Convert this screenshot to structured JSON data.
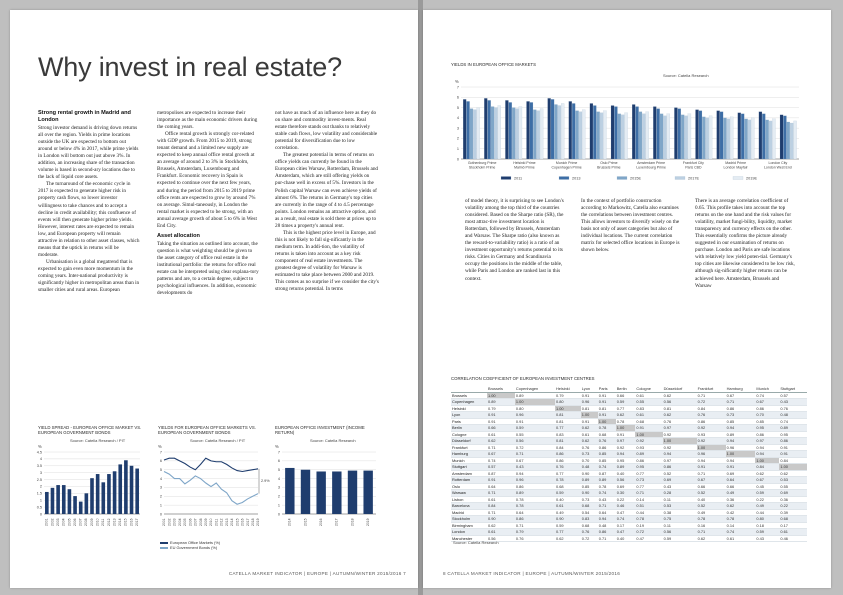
{
  "left": {
    "title": "Why invest in real estate?",
    "col1": {
      "heading": "Strong rental growth in Madrid and London",
      "paras": [
        "Strong investor demand is driving down returns all over the region. Yields in prime locations outside the UK are expected to bottom out around or below 4% in 2017, while prime yields in London will bottom out just above 3%. In addition, an increasing share of the transaction volume is based in second-ary locations due to the lack of liquid core assets.",
        "The turnaround of the economic cycle in 2017 is expected to generate higher risk in property cash flows, so lower investor willingness to take chances and to accept a decline in credit availability; this confluence of events will then generate higher prime yields. However, interest rates are expected to remain low, and European property will remain attractive in relation to other asset classes, which means that the uptick in returns will be moderate.",
        "Urbanisation is a global megatrend that is expected to gain even more momentum in the coming years. Inter-national productivity is significantly higher in metropolitan areas than in smaller cities and rural areas. European"
      ]
    },
    "col2": {
      "paras": [
        "metropolises are expected to increase their importance as the main economic drivers during the coming years.",
        "Office rental growth is strongly cor-related with GDP growth. From 2015 to 2019, strong tenant demand and a limited new supply are expected to keep annual office rental growth at an average of around 2 to 3% in Stockholm, Brussels, Amsterdam, Luxembourg and Frankfurt. Economic recovery in Spain is expected to continue over the next few years, and during the period from 2015 to 2019 prime office rents are expected to grow by around 7% on average. Simul-taneously, in London the rental market is expected to be strong, with an annual average growth of about 5 to 6% in West End City."
      ],
      "heading2": "Asset allocation",
      "paras2": [
        "Taking the situation as outlined into account, the question is what weighting should be given to the asset category of office real estate in the institutional portfolio: the returns for office real estate can be interpreted using clear explana-tory patterns and are, to a certain degree, subject to psychological influences. In addition, economic developments do"
      ]
    },
    "col3": {
      "paras": [
        "not have as much of an influence here as they do on share and commodity invest-ments. Real estate therefore stands out thanks to relatively stable cash flows, low volatility and considerable potential for diversification due to low correlation.",
        "The greatest potential in terms of returns on office yields can currently be found in the European cities Warsaw, Rotterdam, Brussels and Amsterdam, which are still offering yields on pur-chase well in excess of 5%. Investors in the Polish capital Warsaw can even achieve yields of almost 6%. The returns in Germany's top cities are currently in the range of 4 to 4.5 percentage points. London remains an attractive option, and as a result, real estate is sold there at prices up to 28 times a property's annual rent.",
        "This is the highest price level in Europe, and this is not likely to fall sig-nificantly in the medium term. In addi-tion, the volatility of returns is taken into account as a key risk component of real estate investments. The greatest degree of volatility for Warsaw is estimated to take place between 2000 and 2019. This comes as no surprise if we consider the city's strong returns potential. In terms"
      ]
    },
    "fig1": {
      "title": "YIELD SPREAD - EUROPEAN OFFICE MARKET VS. EUROPEAN GOVERNMENT BONDS",
      "source": "Source: Catella Research / PIT",
      "unit": "%"
    },
    "fig2": {
      "title": "YIELDS FOR EUROPEAN OFFICE MARKETS VS. EUROPEAN GOVERNMENT BONDS",
      "source": "Source: Catella Research / PIT",
      "unit": "%",
      "legend": [
        "European Office Markets (%)",
        "EU Government Bonds (%)"
      ]
    },
    "fig3": {
      "title": "EUROPEAN OFFICE INVESTMENT (INCOME RETURN)",
      "source": "Source: Catella Research",
      "unit": "%"
    },
    "footer": "CATELLA MARKET INDICATOR | EUROPE | AUTUMN/WINTER 2015/2016 7"
  },
  "right": {
    "fig_top": {
      "title": "YIELDS IN EUROPEAN OFFICE MARKETS",
      "source": "Source: Catella Research",
      "unit": "%"
    },
    "col1": "of model theory, it is surprising to see London's volatility among the top third of the countries considered. Based on the Sharpe ratio (SR), the most attrac-tive investment location is Rotterdam, followed by Brussels, Amsterdam and Warsaw. The Sharpe ratio (also known as the reward-to-variability ratio) is a ratio of an investment opportunity's returns potential to its risks. Cities in Germany and Scandinavia occupy the positions in the middle of the table, while Paris and London are ranked last in this context.",
    "col2": "In the context of portfolio construction according to Markowitz, Catella also examines the correlations between investment centres. This allows investors to diversify wisely on the basis not only of asset categories but also of individual locations. The current correlation matrix for selected office locations in Europe is shown below.",
    "col3": "There is an average correlation coefficient of 0.65. This profile takes into account the top returns on the one hand and the risk values for volatility, market fungi-bility, liquidity, market transparency and currency effects on the other. This essentially confirms the picture already suggested in our examination of returns on purchase. London and Paris are safe locations with relatively low yield poten-tial. Germany's top cities are likewise considered to be low risk, although sig-nificantly higher returns can be achieved here. Amsterdam, Brussels and Warsaw",
    "table_title": "CORRELATION COEFFICIENT OF EUROPEAN INVESTMENT CENTRES",
    "table_source": "Source: Catella Research",
    "footer": "8 CATELLA MARKET INDICATOR | EUROPE | AUTUMN/WINTER 2015/2016"
  },
  "table": {
    "headers": [
      "Brussels",
      "Copenhagen",
      "Helsinki",
      "Lyon",
      "Paris",
      "Berlin",
      "Cologne",
      "Düsseldorf",
      "Frankfurt",
      "Hamburg",
      "Munich",
      "Stuttgart"
    ],
    "rows": [
      {
        "name": "Brussels",
        "v": [
          "1.00",
          "0.89",
          "0.79",
          "0.91",
          "0.91",
          "0.66",
          "0.61",
          "0.62",
          "0.71",
          "0.67",
          "0.74",
          "0.57"
        ]
      },
      {
        "name": "Copenhagen",
        "v": [
          "0.89",
          "1.00",
          "0.80",
          "0.96",
          "0.91",
          "0.59",
          "0.55",
          "0.56",
          "0.72",
          "0.71",
          "0.67",
          "0.43"
        ]
      },
      {
        "name": "Helsinki",
        "v": [
          "0.79",
          "0.80",
          "1.00",
          "0.81",
          "0.81",
          "0.77",
          "0.83",
          "0.81",
          "0.84",
          "0.86",
          "0.86",
          "0.76"
        ]
      },
      {
        "name": "Lyon",
        "v": [
          "0.91",
          "0.96",
          "0.81",
          "1.00",
          "0.91",
          "0.62",
          "0.61",
          "0.62",
          "0.76",
          "0.73",
          "0.70",
          "0.48"
        ]
      },
      {
        "name": "Paris",
        "v": [
          "0.91",
          "0.91",
          "0.81",
          "0.91",
          "1.00",
          "0.78",
          "0.68",
          "0.76",
          "0.86",
          "0.85",
          "0.85",
          "0.74"
        ]
      },
      {
        "name": "Berlin",
        "v": [
          "0.66",
          "0.59",
          "0.77",
          "0.62",
          "0.78",
          "1.00",
          "0.91",
          "0.97",
          "0.92",
          "0.94",
          "0.95",
          "0.89"
        ]
      },
      {
        "name": "Cologne",
        "v": [
          "0.61",
          "0.55",
          "0.83",
          "0.61",
          "0.68",
          "0.91",
          "1.00",
          "0.92",
          "0.93",
          "0.89",
          "0.86",
          "0.95"
        ]
      },
      {
        "name": "Düsseldorf",
        "v": [
          "0.62",
          "0.56",
          "0.81",
          "0.62",
          "0.76",
          "0.97",
          "0.92",
          "1.00",
          "0.92",
          "0.94",
          "0.97",
          "0.86"
        ]
      },
      {
        "name": "Frankfurt",
        "v": [
          "0.71",
          "0.72",
          "0.84",
          "0.76",
          "0.86",
          "0.92",
          "0.93",
          "0.92",
          "1.00",
          "0.96",
          "0.94",
          "0.91"
        ]
      },
      {
        "name": "Hamburg",
        "v": [
          "0.67",
          "0.71",
          "0.86",
          "0.73",
          "0.85",
          "0.94",
          "0.89",
          "0.94",
          "0.96",
          "1.00",
          "0.94",
          "0.91"
        ]
      },
      {
        "name": "Munich",
        "v": [
          "0.74",
          "0.67",
          "0.86",
          "0.70",
          "0.85",
          "0.95",
          "0.86",
          "0.97",
          "0.94",
          "0.94",
          "1.00",
          "0.84"
        ]
      },
      {
        "name": "Stuttgart",
        "v": [
          "0.57",
          "0.43",
          "0.76",
          "0.48",
          "0.74",
          "0.89",
          "0.95",
          "0.86",
          "0.91",
          "0.91",
          "0.84",
          "1.00"
        ]
      },
      {
        "name": "Amsterdam",
        "v": [
          "0.87",
          "0.94",
          "0.77",
          "0.90",
          "0.87",
          "0.40",
          "0.77",
          "0.52",
          "0.71",
          "0.69",
          "0.62",
          "0.62"
        ]
      },
      {
        "name": "Rotterdam",
        "v": [
          "0.91",
          "0.96",
          "0.78",
          "0.89",
          "0.89",
          "0.56",
          "0.73",
          "0.69",
          "0.67",
          "0.64",
          "0.67",
          "0.53"
        ]
      },
      {
        "name": "Oslo",
        "v": [
          "0.64",
          "0.86",
          "0.68",
          "0.85",
          "0.78",
          "0.69",
          "0.77",
          "0.43",
          "0.66",
          "0.66",
          "0.45",
          "0.55"
        ]
      },
      {
        "name": "Warsaw",
        "v": [
          "0.71",
          "0.89",
          "0.59",
          "0.90",
          "0.74",
          "0.30",
          "0.71",
          "0.28",
          "0.52",
          "0.49",
          "0.59",
          "0.69"
        ]
      },
      {
        "name": "Lisbon",
        "v": [
          "0.61",
          "0.78",
          "0.40",
          "0.73",
          "0.43",
          "0.22",
          "0.14",
          "0.11",
          "0.40",
          "0.36",
          "0.22",
          "0.36"
        ]
      },
      {
        "name": "Barcelona",
        "v": [
          "0.84",
          "0.78",
          "0.61",
          "0.68",
          "0.71",
          "0.46",
          "0.51",
          "0.53",
          "0.52",
          "0.62",
          "0.49",
          "0.22"
        ]
      },
      {
        "name": "Madrid",
        "v": [
          "0.71",
          "0.64",
          "0.49",
          "0.54",
          "0.64",
          "0.47",
          "0.44",
          "0.38",
          "0.49",
          "0.42",
          "0.44",
          "0.39"
        ]
      },
      {
        "name": "Stockholm",
        "v": [
          "0.90",
          "0.86",
          "0.90",
          "0.83",
          "0.94",
          "0.74",
          "0.78",
          "0.75",
          "0.78",
          "0.78",
          "0.80",
          "0.68"
        ]
      },
      {
        "name": "Birmingham",
        "v": [
          "0.62",
          "0.71",
          "0.59",
          "0.68",
          "0.48",
          "0.17",
          "0.19",
          "0.11",
          "0.16",
          "0.14",
          "0.18",
          "0.17"
        ]
      },
      {
        "name": "London",
        "v": [
          "0.61",
          "0.79",
          "0.77",
          "0.76",
          "0.86",
          "0.47",
          "0.72",
          "0.56",
          "0.71",
          "0.74",
          "0.59",
          "0.61"
        ]
      },
      {
        "name": "Manchester",
        "v": [
          "0.56",
          "0.76",
          "0.62",
          "0.72",
          "0.71",
          "0.40",
          "0.47",
          "0.59",
          "0.62",
          "0.61",
          "0.43",
          "0.46"
        ]
      }
    ]
  },
  "chart_data": [
    {
      "type": "bar",
      "title": "YIELD SPREAD - EUROPEAN OFFICE MARKET VS. EUROPEAN GOVERNMENT BONDS",
      "categories": [
        "2001",
        "2002",
        "2003",
        "2004",
        "2005",
        "2006",
        "2007",
        "2008",
        "2009",
        "2010",
        "2011",
        "2012",
        "2013",
        "2014",
        "2015",
        "2016",
        "2017"
      ],
      "values": [
        1.6,
        1.9,
        2.1,
        2.1,
        1.8,
        1.3,
        0.9,
        1.5,
        2.6,
        2.9,
        2.3,
        2.9,
        3.1,
        3.6,
        3.9,
        3.5,
        3.3
      ],
      "ylim": [
        0,
        4.5
      ],
      "color": "#1f3d6e"
    },
    {
      "type": "line",
      "title": "YIELDS FOR EUROPEAN OFFICE MARKETS VS. EUROPEAN GOVERNMENT BONDS",
      "x": [
        "2001",
        "2002",
        "2003",
        "2004",
        "2005",
        "2006",
        "2007",
        "2008",
        "2009",
        "2010",
        "2011",
        "2012",
        "2013",
        "2014",
        "2015",
        "2016",
        "2017",
        "2018",
        "2019"
      ],
      "series": [
        {
          "name": "European Office Markets (%)",
          "values": [
            6.1,
            6.3,
            6.3,
            6.0,
            5.7,
            5.3,
            5.0,
            5.6,
            6.3,
            6.0,
            5.9,
            5.9,
            5.6,
            5.2,
            4.9,
            4.8,
            4.9,
            5.0,
            5.1
          ],
          "color": "#1f3d6e"
        },
        {
          "name": "EU Government Bonds (%)",
          "values": [
            4.8,
            4.5,
            4.0,
            4.0,
            3.4,
            3.8,
            4.3,
            4.0,
            3.5,
            3.1,
            3.5,
            2.8,
            2.4,
            1.5,
            1.1,
            1.3,
            1.7,
            2.0,
            2.3
          ],
          "color": "#7fa6c8"
        }
      ],
      "annotation": "2.9%",
      "ylim": [
        0,
        7
      ]
    },
    {
      "type": "bar",
      "title": "EUROPEAN OFFICE INVESTMENT (INCOME RETURN)",
      "categories": [
        "2014",
        "2015",
        "2016",
        "2017",
        "2018",
        "2019"
      ],
      "values": [
        5.2,
        5.0,
        4.8,
        4.8,
        4.9,
        4.9
      ],
      "ylim": [
        0,
        7
      ],
      "color": "#1f3d6e"
    },
    {
      "type": "bar",
      "title": "YIELDS IN EUROPEAN OFFICE MARKETS",
      "groups": [
        {
          "top": "Gothenburg Prime",
          "bottom": "Stockholm Prime"
        },
        {
          "top": "Helsinki Prime",
          "bottom": "Malmö Prime"
        },
        {
          "top": "Munich Prime",
          "bottom": "Copenhagen Prime"
        },
        {
          "top": "Oslo Prime",
          "bottom": "Brussels Prime"
        },
        {
          "top": "Amsterdam Prime",
          "bottom": "Luxembourg Prime"
        },
        {
          "top": "Frankfurt City",
          "bottom": "Paris CBD"
        },
        {
          "top": "Madrid Prime",
          "bottom": "London Mayfair"
        },
        {
          "top": "London City",
          "bottom": "London West End"
        }
      ],
      "series": [
        {
          "name": "2011",
          "values": [
            5.8,
            5.9,
            5.7,
            5.6,
            5.9,
            5.6,
            5.4,
            5.2,
            5.3,
            5.1,
            5.0,
            4.8,
            4.7,
            4.5,
            4.6,
            4.3
          ],
          "color": "#1f3d6e"
        },
        {
          "name": "2013",
          "values": [
            5.6,
            5.7,
            5.5,
            5.5,
            5.8,
            5.4,
            5.2,
            5.1,
            5.1,
            4.9,
            4.9,
            4.7,
            4.6,
            4.4,
            4.4,
            4.2
          ],
          "color": "#3d6ea6"
        },
        {
          "name": "2015E",
          "values": [
            4.9,
            5.1,
            5.0,
            4.8,
            5.3,
            4.7,
            4.6,
            4.4,
            4.6,
            4.4,
            4.3,
            4.1,
            4.0,
            3.9,
            3.8,
            3.6
          ],
          "color": "#7fa6c8"
        },
        {
          "name": "2017E",
          "values": [
            4.8,
            5.0,
            4.9,
            4.7,
            5.2,
            4.6,
            4.5,
            4.3,
            4.4,
            4.2,
            4.2,
            4.0,
            3.9,
            3.8,
            3.7,
            3.5
          ],
          "color": "#bcd0e2"
        },
        {
          "name": "2019E",
          "values": [
            5.0,
            5.2,
            5.1,
            4.9,
            5.4,
            4.8,
            4.7,
            4.5,
            4.6,
            4.4,
            4.4,
            4.2,
            4.1,
            4.0,
            3.9,
            3.7
          ],
          "color": "#e4ecf3"
        }
      ],
      "ylim": [
        0,
        7
      ]
    }
  ]
}
